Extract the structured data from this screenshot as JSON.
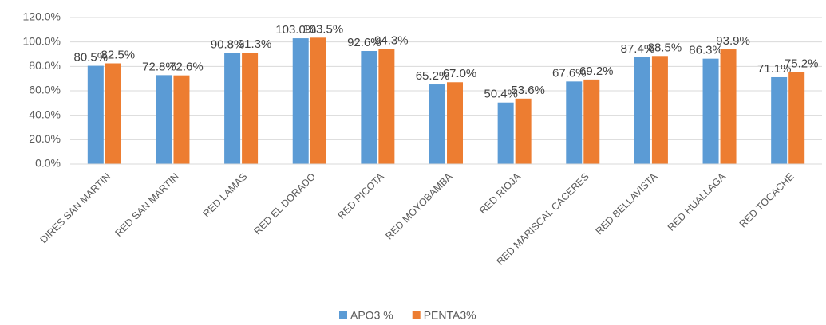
{
  "chart_data": {
    "type": "bar",
    "categories": [
      "DIRES SAN MARTIN",
      "RED SAN MARTIN",
      "RED LAMAS",
      "RED EL DORADO",
      "RED PICOTA",
      "RED MOYOBAMBA",
      "RED RIOJA",
      "RED MARISCAL CACERES",
      "RED BELLAVISTA",
      "RED HUALLAGA",
      "RED TOCACHE"
    ],
    "series": [
      {
        "name": "APO3 %",
        "color": "#5b9bd5",
        "values": [
          80.5,
          72.8,
          90.8,
          103.0,
          92.6,
          65.2,
          50.4,
          67.6,
          87.4,
          86.3,
          71.1
        ],
        "value_labels": [
          "80.5%",
          "72.8%",
          "90.8%",
          "103.0%",
          "92.6%",
          "65.2%",
          "50.4%",
          "67.6%",
          "87.4%",
          "86.3%",
          "71.1%"
        ]
      },
      {
        "name": "PENTA3%",
        "color": "#ed7d31",
        "values": [
          82.5,
          72.6,
          91.3,
          103.5,
          94.3,
          67.0,
          53.6,
          69.2,
          88.5,
          93.9,
          75.2
        ],
        "value_labels": [
          "82.5%",
          "72.6%",
          "91.3%",
          "103.5%",
          "94.3%",
          "67.0%",
          "53.6%",
          "69.2%",
          "88.5%",
          "93.9%",
          "75.2%"
        ]
      }
    ],
    "ylim": [
      0,
      120
    ],
    "yticks": [
      {
        "value": 0,
        "label": "0.0%"
      },
      {
        "value": 20,
        "label": "20.0%"
      },
      {
        "value": 40,
        "label": "40.0%"
      },
      {
        "value": 60,
        "label": "60.0%"
      },
      {
        "value": 80,
        "label": "80.0%"
      },
      {
        "value": 100,
        "label": "100.0%"
      },
      {
        "value": 120,
        "label": "120.0%"
      }
    ],
    "legend": "bottom"
  }
}
